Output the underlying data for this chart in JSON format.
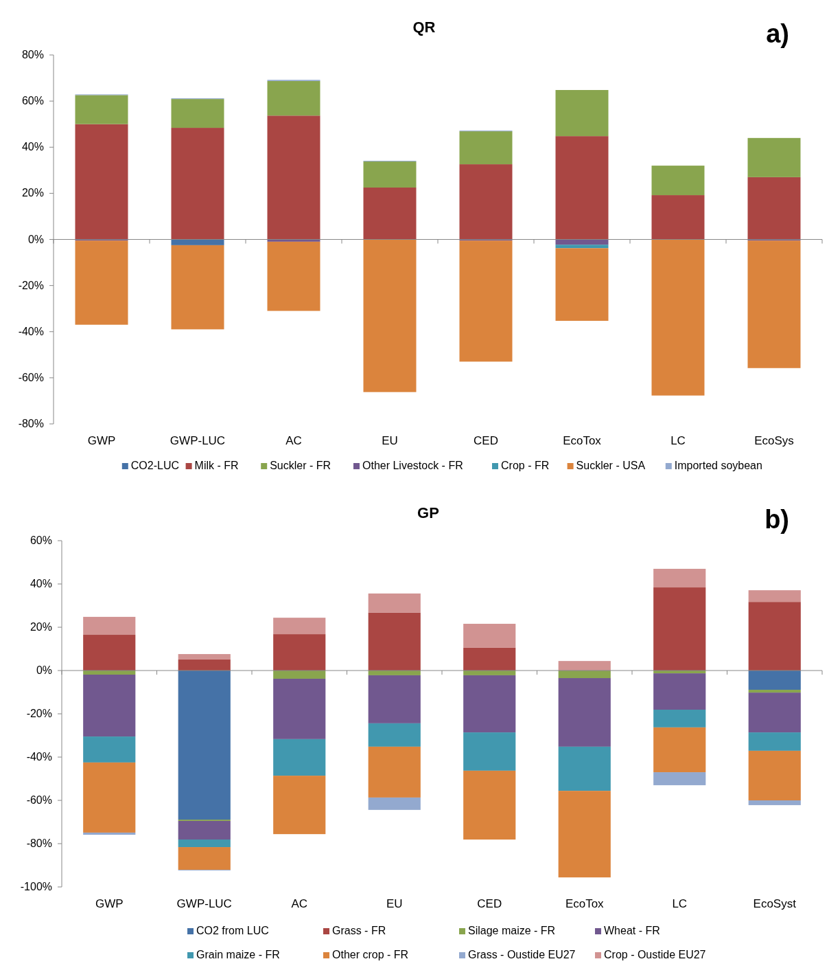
{
  "chart_data": [
    {
      "type": "bar",
      "title": "QR",
      "annotations": [
        "a)"
      ],
      "stacked": true,
      "legend": "bottom",
      "categories": [
        "GWP",
        "GWP-LUC",
        "AC",
        "EU",
        "CED",
        "EcoTox",
        "LC",
        "EcoSys"
      ],
      "ylim": [
        -80,
        80
      ],
      "yticks": [
        {
          "value": -80,
          "label": "-80%"
        },
        {
          "value": -60,
          "label": "-60%"
        },
        {
          "value": -40,
          "label": "-40%"
        },
        {
          "value": -20,
          "label": "-20%"
        },
        {
          "value": 0,
          "label": "0%"
        },
        {
          "value": 20,
          "label": "20%"
        },
        {
          "value": 40,
          "label": "40%"
        },
        {
          "value": 60,
          "label": "60%"
        },
        {
          "value": 80,
          "label": "80%"
        }
      ],
      "series": [
        {
          "name": "CO2-LUC",
          "color": "#4572a7",
          "values": [
            null,
            -2.5,
            null,
            null,
            null,
            null,
            null,
            null
          ]
        },
        {
          "name": "Milk - FR",
          "color": "#aa4643",
          "values": [
            50,
            48.4,
            53.7,
            22.5,
            32.6,
            44.8,
            19.2,
            27
          ]
        },
        {
          "name": "Suckler - FR",
          "color": "#89a54e",
          "values": [
            12.6,
            12.5,
            15,
            11.3,
            14.3,
            20,
            12.8,
            17
          ]
        },
        {
          "name": "Other Livestock - FR",
          "color": "#71588f",
          "values": [
            -0.5,
            null,
            -1,
            null,
            -0.5,
            -2.3,
            null,
            -0.5
          ]
        },
        {
          "name": "Crop - FR",
          "color": "#4198af",
          "values": [
            null,
            null,
            null,
            null,
            null,
            -1.5,
            null,
            null
          ]
        },
        {
          "name": "Suckler - USA",
          "color": "#db843d",
          "values": [
            -36.5,
            -36.5,
            -30,
            -66.2,
            -52.5,
            -31.5,
            -67.7,
            -55.3
          ]
        },
        {
          "name": "Imported soybean",
          "color": "#93a9cf",
          "values": [
            0.3,
            0.3,
            0.5,
            0.3,
            0.3,
            null,
            null,
            null
          ]
        }
      ]
    },
    {
      "type": "bar",
      "title": "GP",
      "annotations": [
        "b)"
      ],
      "stacked": true,
      "legend": "bottom",
      "categories": [
        "GWP",
        "GWP-LUC",
        "AC",
        "EU",
        "CED",
        "EcoTox",
        "LC",
        "EcoSyst"
      ],
      "ylim": [
        -100,
        60
      ],
      "yticks": [
        {
          "value": -100,
          "label": "-100%"
        },
        {
          "value": -80,
          "label": "-80%"
        },
        {
          "value": -60,
          "label": "-60%"
        },
        {
          "value": -40,
          "label": "-40%"
        },
        {
          "value": -20,
          "label": "-20%"
        },
        {
          "value": 0,
          "label": "0%"
        },
        {
          "value": 20,
          "label": "20%"
        },
        {
          "value": 40,
          "label": "40%"
        },
        {
          "value": 60,
          "label": "60%"
        }
      ],
      "series": [
        {
          "name": "CO2 from LUC",
          "color": "#4572a7",
          "values": [
            null,
            -68.9,
            null,
            null,
            null,
            null,
            null,
            -8.9
          ]
        },
        {
          "name": "Grass - FR",
          "color": "#aa4643",
          "values": [
            16.5,
            5.1,
            16.8,
            26.7,
            10.5,
            null,
            38.4,
            31.7
          ]
        },
        {
          "name": "Silage maize - FR",
          "color": "#89a54e",
          "values": [
            -1.9,
            -0.6,
            -3.8,
            -2.2,
            -2.2,
            -3.5,
            -1.3,
            -1.3
          ]
        },
        {
          "name": "Wheat - FR",
          "color": "#71588f",
          "values": [
            -28.6,
            -8.6,
            -27.9,
            -22.2,
            -26.4,
            -31.7,
            -16.8,
            -18.4
          ]
        },
        {
          "name": "Grain maize - FR",
          "color": "#4198af",
          "values": [
            -12,
            -3.5,
            -16.9,
            -10.8,
            -17.7,
            -20.4,
            -8.2,
            -8.5
          ]
        },
        {
          "name": "Other crop - FR",
          "color": "#db843d",
          "values": [
            -32.4,
            -10.5,
            -27,
            -23.5,
            -31.8,
            -40,
            -20.7,
            -22.9
          ]
        },
        {
          "name": "Grass - Oustide EU27",
          "color": "#93a9cf",
          "values": [
            -1,
            -0.3,
            null,
            -5.7,
            null,
            null,
            -6,
            -2.2
          ]
        },
        {
          "name": "Crop - Oustide EU27",
          "color": "#d19392",
          "values": [
            8.3,
            2.5,
            7.6,
            8.9,
            11.1,
            4.4,
            8.6,
            5.4
          ]
        }
      ]
    }
  ]
}
